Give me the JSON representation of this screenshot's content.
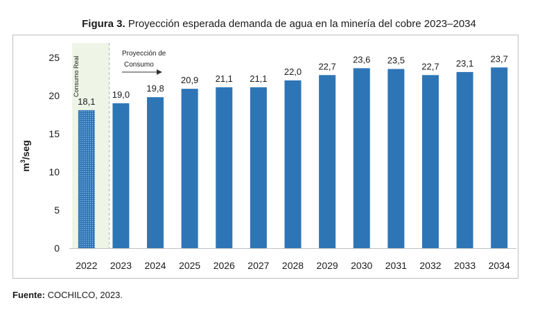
{
  "figure": {
    "title_bold": "Figura 3.",
    "title_rest": "Proyección esperada demanda de agua en la minería del cobre 2023–2034"
  },
  "source": {
    "label": "Fuente:",
    "text": "COCHILCO, 2023."
  },
  "colors": {
    "bar": "#2e75b6",
    "real_bar_pattern": "#2e75b6",
    "real_region_bg": "#eef5e6",
    "axis": "#bfbfbf",
    "text": "#1a1a1a"
  },
  "chart_data": {
    "type": "bar",
    "ylabel_base": "m",
    "ylabel_sup": "3",
    "ylabel_rest": "/seg",
    "ylim": [
      0,
      25
    ],
    "yticks": [
      0,
      5,
      10,
      15,
      20,
      25
    ],
    "categories": [
      "2022",
      "2023",
      "2024",
      "2025",
      "2026",
      "2027",
      "2028",
      "2029",
      "2030",
      "2031",
      "2032",
      "2033",
      "2034"
    ],
    "values": [
      18.1,
      19.0,
      19.8,
      20.9,
      21.1,
      21.1,
      22.0,
      22.7,
      23.6,
      23.5,
      22.7,
      23.1,
      23.7
    ],
    "value_labels": [
      "18,1",
      "19,0",
      "19,8",
      "20,9",
      "21,1",
      "21,1",
      "22,0",
      "22,7",
      "23,6",
      "23,5",
      "22,7",
      "23,1",
      "23,7"
    ],
    "grid": false,
    "annotations": {
      "real_label": "Consumo Real",
      "projection_line1": "Proyección de",
      "projection_line2": "Consumo"
    }
  }
}
